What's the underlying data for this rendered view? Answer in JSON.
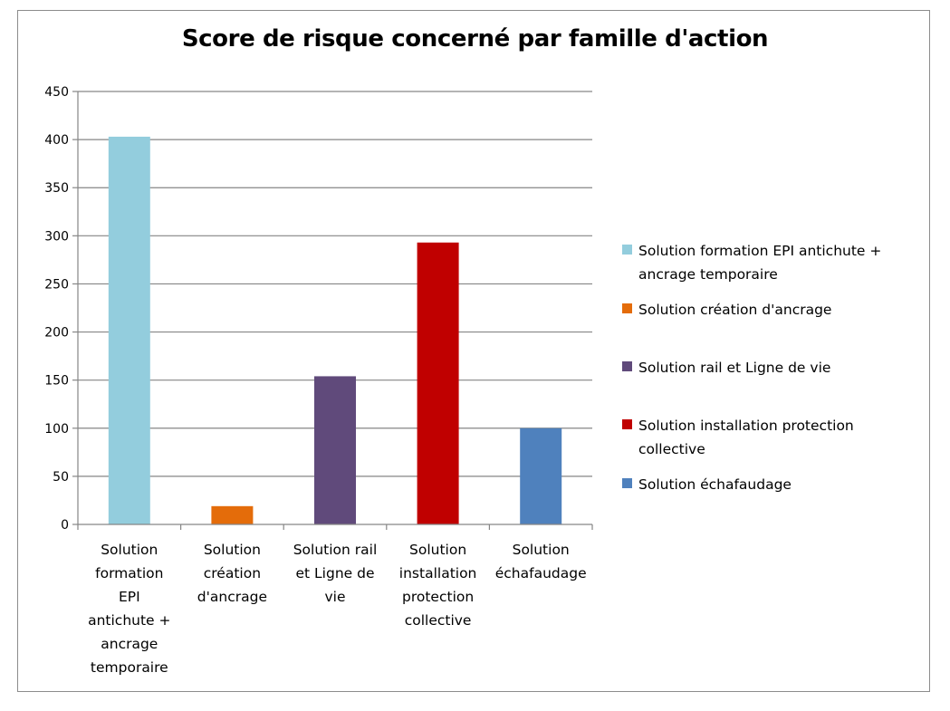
{
  "chart_data": {
    "type": "bar",
    "title": "Score de risque concerné par famille d'action",
    "xlabel": "",
    "ylabel": "",
    "ylim": [
      0,
      450
    ],
    "yticks": [
      0,
      50,
      100,
      150,
      200,
      250,
      300,
      350,
      400,
      450
    ],
    "grid": true,
    "legend_position": "right",
    "categories": [
      "Solution formation EPI antichute + ancrage temporaire",
      "Solution création d'ancrage",
      "Solution rail et Ligne de vie",
      "Solution installation protection collective",
      "Solution échafaudage"
    ],
    "category_label_lines": [
      [
        "Solution",
        "formation",
        "EPI",
        "antichute +",
        "ancrage",
        "temporaire"
      ],
      [
        "Solution",
        "création",
        "d'ancrage"
      ],
      [
        "Solution rail",
        "et Ligne de",
        "vie"
      ],
      [
        "Solution",
        "installation",
        "protection",
        "collective"
      ],
      [
        "Solution",
        "échafaudage"
      ]
    ],
    "values": [
      403,
      19,
      154,
      293,
      100
    ],
    "colors": [
      "#93cddd",
      "#e46c0a",
      "#604a7b",
      "#c00000",
      "#4f81bd"
    ],
    "legend": [
      {
        "lines": [
          "Solution formation EPI antichute +",
          "ancrage temporaire"
        ],
        "color": "#93cddd"
      },
      {
        "lines": [
          "Solution création d'ancrage"
        ],
        "color": "#e46c0a"
      },
      {
        "lines": [
          "Solution rail et Ligne de vie"
        ],
        "color": "#604a7b"
      },
      {
        "lines": [
          "Solution installation protection",
          "collective"
        ],
        "color": "#c00000"
      },
      {
        "lines": [
          "Solution échafaudage"
        ],
        "color": "#4f81bd"
      }
    ]
  }
}
